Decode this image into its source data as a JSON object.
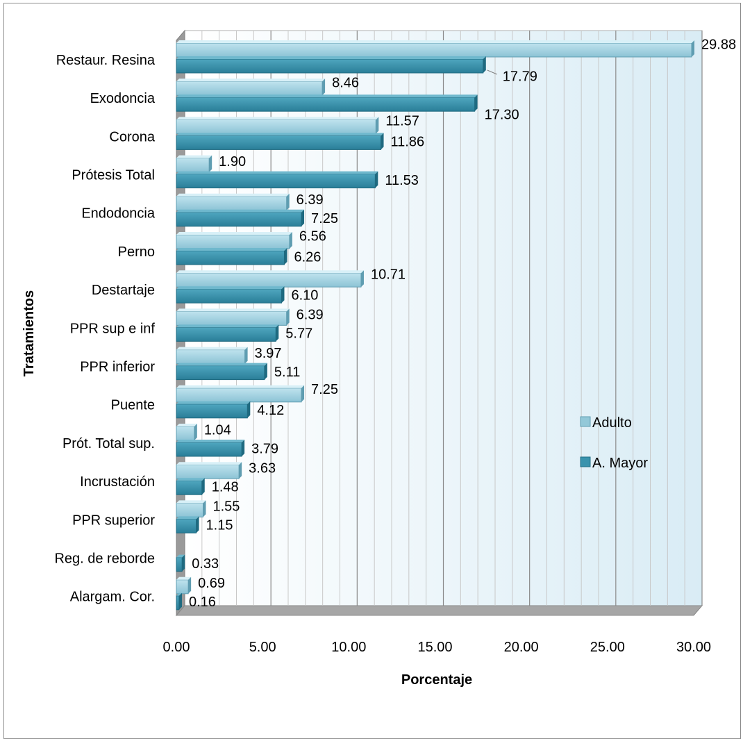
{
  "chart_data": {
    "type": "bar",
    "orientation": "horizontal",
    "title": "",
    "xlabel": "Porcentaje",
    "ylabel": "Tratamientos",
    "xlim": [
      0,
      30
    ],
    "x_ticks": [
      "0.00",
      "5.00",
      "10.00",
      "15.00",
      "20.00",
      "25.00",
      "30.00"
    ],
    "grid": "vertical",
    "legend_position": "right",
    "categories": [
      "Restaur. Resina",
      "Exodoncia",
      "Corona",
      "Prótesis Total",
      "Endodoncia",
      "Perno",
      "Destartaje",
      "PPR sup e inf",
      "PPR inferior",
      "Puente",
      "Prót. Total sup.",
      "Incrustación",
      "PPR superior",
      "Reg. de reborde",
      "Alargam. Cor."
    ],
    "series": [
      {
        "name": "Adulto",
        "color": "#93c8d8",
        "values": [
          29.88,
          8.46,
          11.57,
          1.9,
          6.39,
          6.56,
          10.71,
          6.39,
          3.97,
          7.25,
          1.04,
          3.63,
          1.55,
          null,
          0.69
        ],
        "labels": [
          "29.88",
          "8.46",
          "11.57",
          "1.90",
          "6.39",
          "6.56",
          "10.71",
          "6.39",
          "3.97",
          "7.25",
          "1.04",
          "3.63",
          "1.55",
          "",
          "0.69"
        ]
      },
      {
        "name": "A. Mayor",
        "color": "#3a93ad",
        "values": [
          17.79,
          17.3,
          11.86,
          11.53,
          7.25,
          6.26,
          6.1,
          5.77,
          5.11,
          4.12,
          3.79,
          1.48,
          1.15,
          0.33,
          0.16
        ],
        "labels": [
          "17.79",
          "17.30",
          "11.86",
          "11.53",
          "7.25",
          "6.26",
          "6.10",
          "5.77",
          "5.11",
          "4.12",
          "3.79",
          "1.48",
          "1.15",
          "0.33",
          "0.16"
        ]
      }
    ]
  }
}
